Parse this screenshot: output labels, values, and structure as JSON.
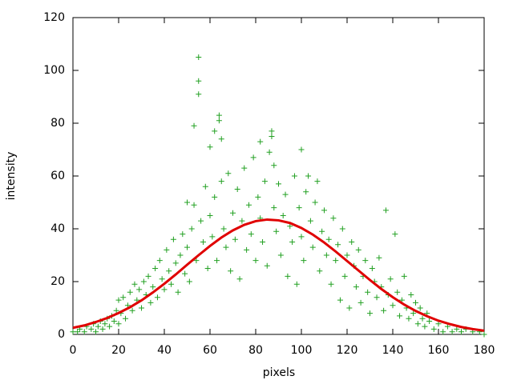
{
  "chart_data": {
    "type": "scatter",
    "xlabel": "pixels",
    "ylabel": "intensity",
    "xlim": [
      0,
      180
    ],
    "ylim": [
      0,
      120
    ],
    "xticks": [
      0,
      20,
      40,
      60,
      80,
      100,
      120,
      140,
      160,
      180
    ],
    "yticks": [
      0,
      20,
      40,
      60,
      80,
      100,
      120
    ],
    "grid": false,
    "series": [
      {
        "type": "scatter",
        "color": "#22a022",
        "x": [
          0,
          2,
          3,
          5,
          6,
          8,
          9,
          10,
          11,
          12,
          13,
          14,
          15,
          16,
          17,
          18,
          19,
          20,
          20,
          21,
          22,
          23,
          24,
          25,
          26,
          27,
          28,
          29,
          30,
          31,
          32,
          33,
          34,
          35,
          36,
          37,
          38,
          39,
          40,
          41,
          42,
          43,
          44,
          45,
          46,
          47,
          48,
          49,
          50,
          50,
          51,
          52,
          53,
          53,
          54,
          55,
          55,
          55,
          56,
          57,
          58,
          59,
          60,
          60,
          61,
          62,
          62,
          63,
          64,
          64,
          65,
          65,
          66,
          67,
          68,
          69,
          70,
          71,
          72,
          73,
          74,
          75,
          76,
          77,
          78,
          79,
          80,
          81,
          82,
          82,
          83,
          84,
          85,
          86,
          87,
          87,
          88,
          88,
          89,
          90,
          91,
          92,
          93,
          94,
          95,
          96,
          97,
          98,
          99,
          100,
          100,
          101,
          102,
          103,
          104,
          105,
          106,
          107,
          108,
          109,
          110,
          111,
          112,
          113,
          114,
          115,
          116,
          117,
          118,
          119,
          120,
          121,
          122,
          123,
          124,
          125,
          126,
          127,
          128,
          129,
          130,
          131,
          132,
          133,
          134,
          135,
          136,
          137,
          138,
          139,
          140,
          141,
          142,
          143,
          144,
          145,
          146,
          147,
          148,
          149,
          150,
          151,
          152,
          153,
          154,
          155,
          156,
          158,
          160,
          162,
          164,
          166,
          168,
          170,
          172,
          175,
          178,
          180
        ],
        "values": [
          1,
          1,
          2,
          1,
          3,
          2,
          4,
          1,
          3,
          5,
          2,
          4,
          6,
          3,
          7,
          5,
          9,
          4,
          13,
          8,
          14,
          6,
          11,
          16,
          9,
          19,
          13,
          17,
          10,
          20,
          15,
          22,
          12,
          18,
          25,
          14,
          28,
          21,
          17,
          32,
          24,
          19,
          36,
          27,
          16,
          30,
          38,
          23,
          33,
          50,
          20,
          40,
          49,
          79,
          28,
          105,
          96,
          91,
          43,
          35,
          56,
          25,
          71,
          45,
          37,
          77,
          52,
          28,
          83,
          81,
          74,
          58,
          40,
          33,
          61,
          24,
          46,
          36,
          55,
          21,
          43,
          63,
          32,
          49,
          38,
          67,
          28,
          52,
          73,
          44,
          35,
          58,
          26,
          69,
          77,
          75,
          64,
          48,
          39,
          57,
          30,
          45,
          53,
          22,
          41,
          35,
          60,
          19,
          48,
          70,
          37,
          28,
          54,
          60,
          43,
          33,
          50,
          58,
          24,
          39,
          47,
          30,
          36,
          19,
          44,
          28,
          34,
          13,
          40,
          22,
          30,
          10,
          35,
          26,
          18,
          32,
          12,
          22,
          28,
          16,
          8,
          25,
          20,
          14,
          29,
          18,
          9,
          47,
          15,
          21,
          11,
          38,
          16,
          7,
          13,
          22,
          10,
          6,
          15,
          8,
          12,
          4,
          10,
          6,
          3,
          8,
          5,
          2,
          4,
          1,
          3,
          1,
          2,
          1,
          2,
          1,
          1,
          0
        ]
      },
      {
        "type": "line",
        "color": "#e00000",
        "x": [
          0,
          5,
          10,
          15,
          20,
          25,
          30,
          35,
          40,
          45,
          50,
          55,
          60,
          65,
          70,
          75,
          80,
          85,
          90,
          95,
          100,
          105,
          110,
          115,
          120,
          125,
          130,
          135,
          140,
          145,
          150,
          155,
          160,
          165,
          170,
          175,
          180
        ],
        "values": [
          2.5,
          3.4,
          4.7,
          6.2,
          8.1,
          10.3,
          12.9,
          15.9,
          19.2,
          22.7,
          26.4,
          30.0,
          33.5,
          36.7,
          39.4,
          41.5,
          42.9,
          43.5,
          43.2,
          42.2,
          40.3,
          37.8,
          34.8,
          31.4,
          27.8,
          24.2,
          20.6,
          17.2,
          14.1,
          11.3,
          8.9,
          6.9,
          5.2,
          3.9,
          2.8,
          2.0,
          1.4
        ]
      }
    ]
  }
}
